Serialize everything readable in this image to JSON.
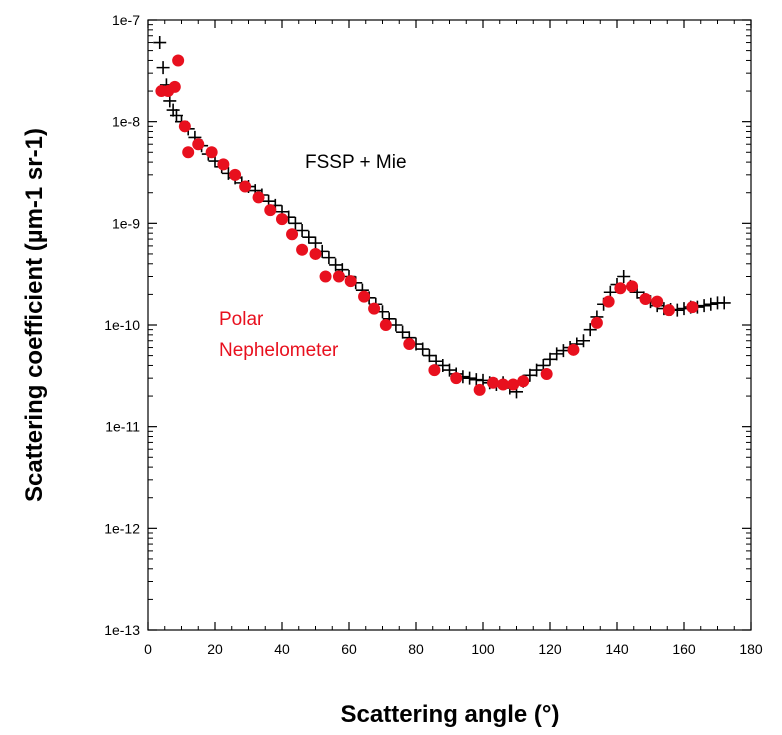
{
  "chart_data": {
    "type": "scatter",
    "xlabel": "Scattering angle (°)",
    "ylabel": "Scattering coefficient (µm-1 sr-1)",
    "xlim": [
      0,
      180
    ],
    "ylim": [
      1e-13,
      1e-07
    ],
    "yscale": "log",
    "x_ticks": [
      0,
      20,
      40,
      60,
      80,
      100,
      120,
      140,
      160,
      180
    ],
    "x_tick_labels": [
      "0",
      "20",
      "40",
      "60",
      "80",
      "100",
      "120",
      "140",
      "160",
      "180"
    ],
    "y_ticks": [
      1e-13,
      1e-12,
      1e-11,
      1e-10,
      1e-09,
      1e-08,
      1e-07
    ],
    "y_tick_labels": [
      "1e-13",
      "1e-12",
      "1e-11",
      "1e-10",
      "1e-9",
      "1e-8",
      "1e-7"
    ],
    "grid": false,
    "annotations": [
      {
        "text": "FSSP + Mie",
        "color": "#000000"
      },
      {
        "text": "Polar",
        "color": "#e8101e"
      },
      {
        "text": "Nephelometer",
        "color": "#e8101e"
      }
    ],
    "series": [
      {
        "marker": "cross",
        "color": "#000000",
        "x": [
          3.5,
          4.5,
          5.5,
          6.5,
          7.5,
          8.5,
          10,
          12,
          14,
          16,
          18,
          20,
          22,
          24,
          26,
          28,
          30,
          32,
          34,
          36,
          38,
          40,
          42,
          44,
          46,
          48,
          50,
          52,
          54,
          56,
          58,
          60,
          62,
          64,
          66,
          68,
          70,
          72,
          74,
          76,
          78,
          80,
          82,
          84,
          86,
          88,
          90,
          92,
          94,
          96,
          98,
          100,
          102,
          104,
          106,
          108,
          110,
          112,
          114,
          116,
          118,
          120,
          122,
          124,
          126,
          128,
          130,
          132,
          134,
          136,
          138,
          140,
          142,
          144,
          146,
          148,
          150,
          152,
          154,
          156,
          158,
          160,
          162,
          164,
          166,
          168,
          170,
          172
        ],
        "y": [
          6e-08,
          3.4e-08,
          2.3e-08,
          1.6e-08,
          1.3e-08,
          1.15e-08,
          1e-08,
          8.5e-09,
          7e-09,
          5.8e-09,
          4.8e-09,
          4.1e-09,
          3.6e-09,
          3.1e-09,
          2.8e-09,
          2.5e-09,
          2.3e-09,
          2.1e-09,
          1.9e-09,
          1.65e-09,
          1.5e-09,
          1.3e-09,
          1.15e-09,
          1e-09,
          8.5e-10,
          7.3e-10,
          6.4e-10,
          5.3e-10,
          4.6e-10,
          3.9e-10,
          3.5e-10,
          3e-10,
          2.6e-10,
          2.2e-10,
          1.85e-10,
          1.6e-10,
          1.35e-10,
          1.15e-10,
          1e-10,
          8.5e-11,
          7.5e-11,
          6.5e-11,
          5.8e-11,
          5e-11,
          4.4e-11,
          4e-11,
          3.6e-11,
          3.3e-11,
          3.1e-11,
          3e-11,
          2.9e-11,
          2.85e-11,
          2.7e-11,
          2.6e-11,
          2.7e-11,
          2.4e-11,
          2.2e-11,
          2.8e-11,
          3.2e-11,
          3.6e-11,
          4e-11,
          4.6e-11,
          5.2e-11,
          5.6e-11,
          6e-11,
          6.5e-11,
          7e-11,
          9e-11,
          1.2e-10,
          1.6e-10,
          2.1e-10,
          2.5e-10,
          3e-10,
          2.4e-10,
          2.1e-10,
          1.85e-10,
          1.7e-10,
          1.55e-10,
          1.45e-10,
          1.42e-10,
          1.4e-10,
          1.45e-10,
          1.5e-10,
          1.5e-10,
          1.55e-10,
          1.6e-10,
          1.65e-10,
          1.65e-10
        ]
      },
      {
        "marker": "circle",
        "color": "#e8101e",
        "x": [
          4,
          6,
          8,
          9,
          11,
          12,
          15,
          19,
          22.5,
          26,
          29,
          33,
          36.5,
          40,
          43,
          46,
          50,
          53,
          57,
          60.5,
          64.5,
          67.5,
          71,
          78,
          85.5,
          92,
          99,
          103,
          106,
          109,
          112,
          119,
          127,
          134,
          137.5,
          141,
          144.5,
          148.5,
          152,
          155.5,
          162.5
        ],
        "y": [
          2e-08,
          2e-08,
          2.2e-08,
          4e-08,
          9e-09,
          5e-09,
          6e-09,
          5e-09,
          3.8e-09,
          3e-09,
          2.3e-09,
          1.8e-09,
          1.35e-09,
          1.1e-09,
          7.8e-10,
          5.5e-10,
          5e-10,
          3e-10,
          3e-10,
          2.7e-10,
          1.9e-10,
          1.45e-10,
          1e-10,
          6.5e-11,
          3.6e-11,
          3e-11,
          2.3e-11,
          2.7e-11,
          2.6e-11,
          2.6e-11,
          2.8e-11,
          3.3e-11,
          5.7e-11,
          1.05e-10,
          1.7e-10,
          2.3e-10,
          2.4e-10,
          1.8e-10,
          1.7e-10,
          1.4e-10,
          1.5e-10
        ]
      }
    ]
  }
}
